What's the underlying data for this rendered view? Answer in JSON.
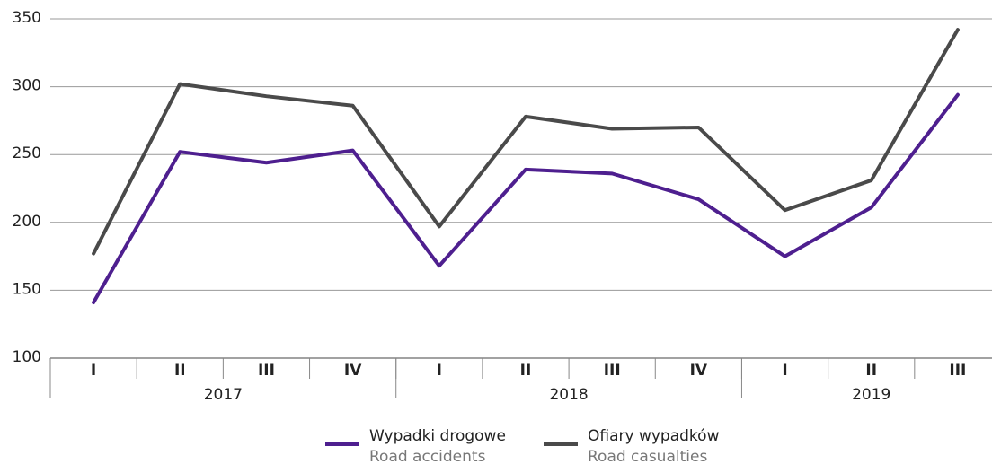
{
  "chart_data": {
    "type": "line",
    "categories": [
      "I",
      "II",
      "III",
      "IV",
      "I",
      "II",
      "III",
      "IV",
      "I",
      "II",
      "III"
    ],
    "groups": [
      {
        "label": "2017",
        "span": 4
      },
      {
        "label": "2018",
        "span": 4
      },
      {
        "label": "2019",
        "span": 3
      }
    ],
    "series": [
      {
        "name": "Wypadki drogowe",
        "name_en": "Road accidents",
        "color": "#4e1f8f",
        "values": [
          141,
          252,
          244,
          253,
          168,
          239,
          236,
          217,
          175,
          211,
          294
        ]
      },
      {
        "name": "Ofiary wypadków",
        "name_en": "Road casualties",
        "color": "#4a4a4a",
        "values": [
          177,
          302,
          293,
          286,
          197,
          278,
          269,
          270,
          209,
          231,
          342
        ]
      }
    ],
    "ylim": [
      100,
      350
    ],
    "yticks": [
      100,
      150,
      200,
      250,
      300,
      350
    ],
    "grid": true,
    "legend": "bottom"
  }
}
